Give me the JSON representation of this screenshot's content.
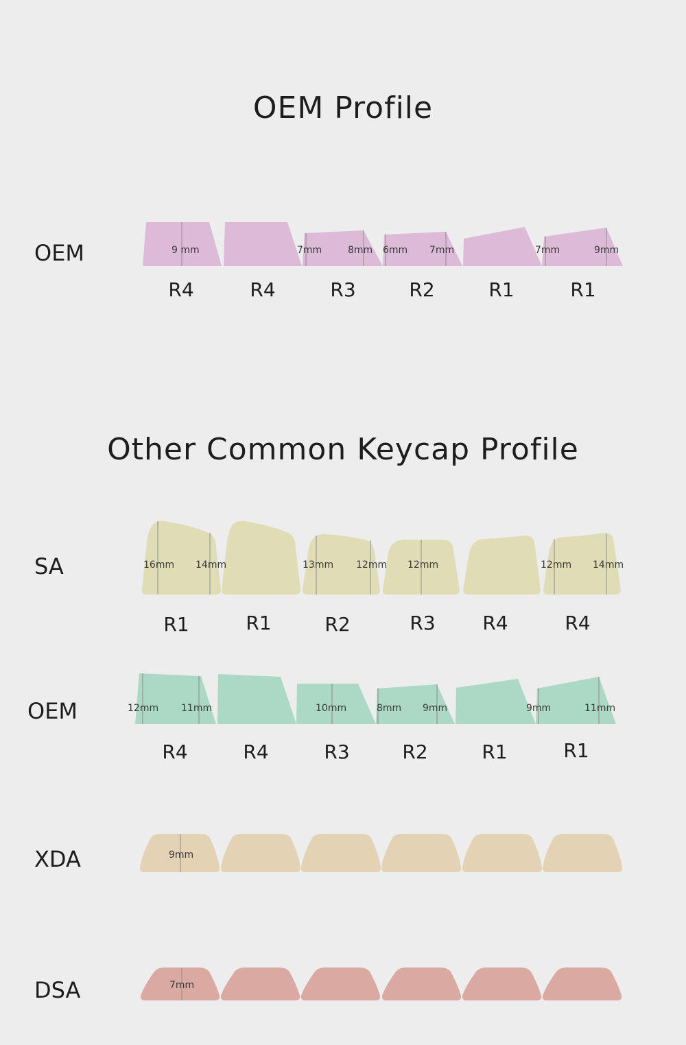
{
  "headings": {
    "oem_profile": "OEM Profile",
    "other_profiles": "Other Common Keycap Profile"
  },
  "profiles": {
    "oem_top": {
      "label": "OEM",
      "color": "#dcbad8",
      "rows": [
        "R4",
        "R4",
        "R3",
        "R2",
        "R1",
        "R1"
      ],
      "dims": [
        "9 mm",
        "7mm",
        "8mm",
        "6mm",
        "7mm",
        "7mm",
        "9mm"
      ]
    },
    "sa": {
      "label": "SA",
      "color": "#dfddb5",
      "rows": [
        "R1",
        "R1",
        "R2",
        "R3",
        "R4",
        "R4"
      ],
      "dims": [
        "16mm",
        "14mm",
        "13mm",
        "12mm",
        "12mm",
        "12mm",
        "14mm"
      ]
    },
    "oem": {
      "label": "OEM",
      "color": "#acd8c6",
      "rows": [
        "R4",
        "R4",
        "R3",
        "R2",
        "R1",
        "R1"
      ],
      "dims": [
        "12mm",
        "11mm",
        "10mm",
        "8mm",
        "9mm",
        "9mm",
        "11mm"
      ]
    },
    "xda": {
      "label": "XDA",
      "color": "#e3d2b3",
      "dims": [
        "9mm"
      ]
    },
    "dsa": {
      "label": "DSA",
      "color": "#d9a9a2",
      "dims": [
        "7mm"
      ]
    }
  }
}
